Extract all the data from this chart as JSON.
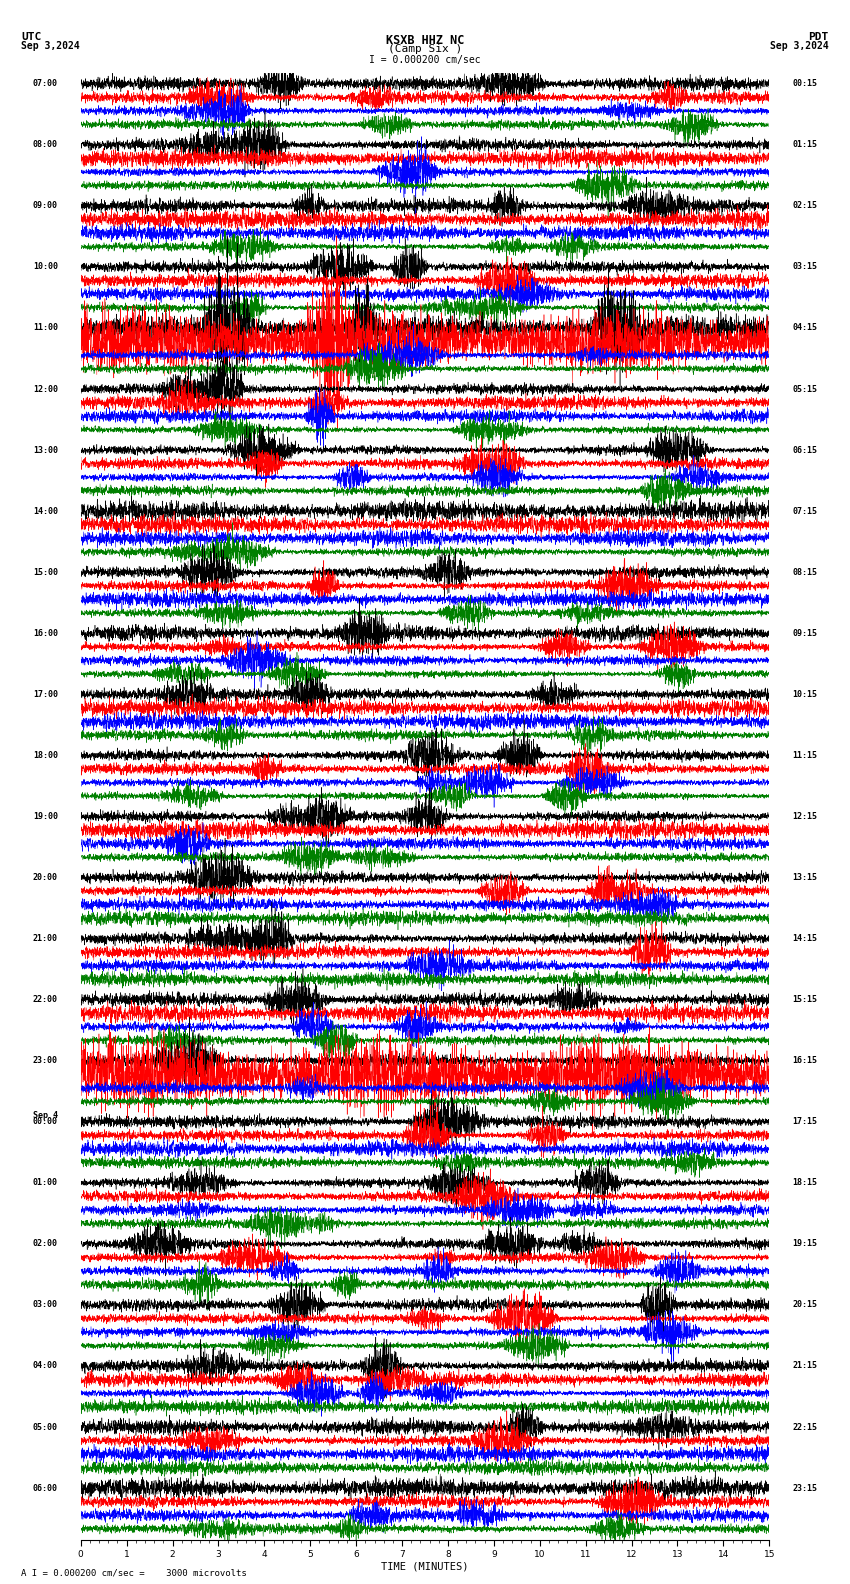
{
  "title_line1": "KSXB HHZ NC",
  "title_line2": "(Camp Six )",
  "scale_text": "I = 0.000200 cm/sec",
  "footer_text": "A I = 0.000200 cm/sec =    3000 microvolts",
  "utc_label": "UTC",
  "pdt_label": "PDT",
  "date_left": "Sep 3,2024",
  "date_right": "Sep 3,2024",
  "xlabel": "TIME (MINUTES)",
  "xlim": [
    0,
    15
  ],
  "colors": [
    "black",
    "red",
    "blue",
    "green"
  ],
  "fig_width": 8.5,
  "fig_height": 15.84,
  "bg_color": "white",
  "rows_left_labels": [
    "07:00",
    "08:00",
    "09:00",
    "10:00",
    "11:00",
    "12:00",
    "13:00",
    "14:00",
    "15:00",
    "16:00",
    "17:00",
    "18:00",
    "19:00",
    "20:00",
    "21:00",
    "22:00",
    "23:00",
    "Sep 4\n00:00",
    "01:00",
    "02:00",
    "03:00",
    "04:00",
    "05:00",
    "06:00"
  ],
  "rows_right_labels": [
    "00:15",
    "01:15",
    "02:15",
    "03:15",
    "04:15",
    "05:15",
    "06:15",
    "07:15",
    "08:15",
    "09:15",
    "10:15",
    "11:15",
    "12:15",
    "13:15",
    "14:15",
    "15:15",
    "16:15",
    "17:15",
    "18:15",
    "19:15",
    "20:15",
    "21:15",
    "22:15",
    "23:15"
  ],
  "num_rows": 24,
  "seed": 42,
  "big_red_rows": [
    4,
    16
  ],
  "big_black_rows": [
    4
  ]
}
